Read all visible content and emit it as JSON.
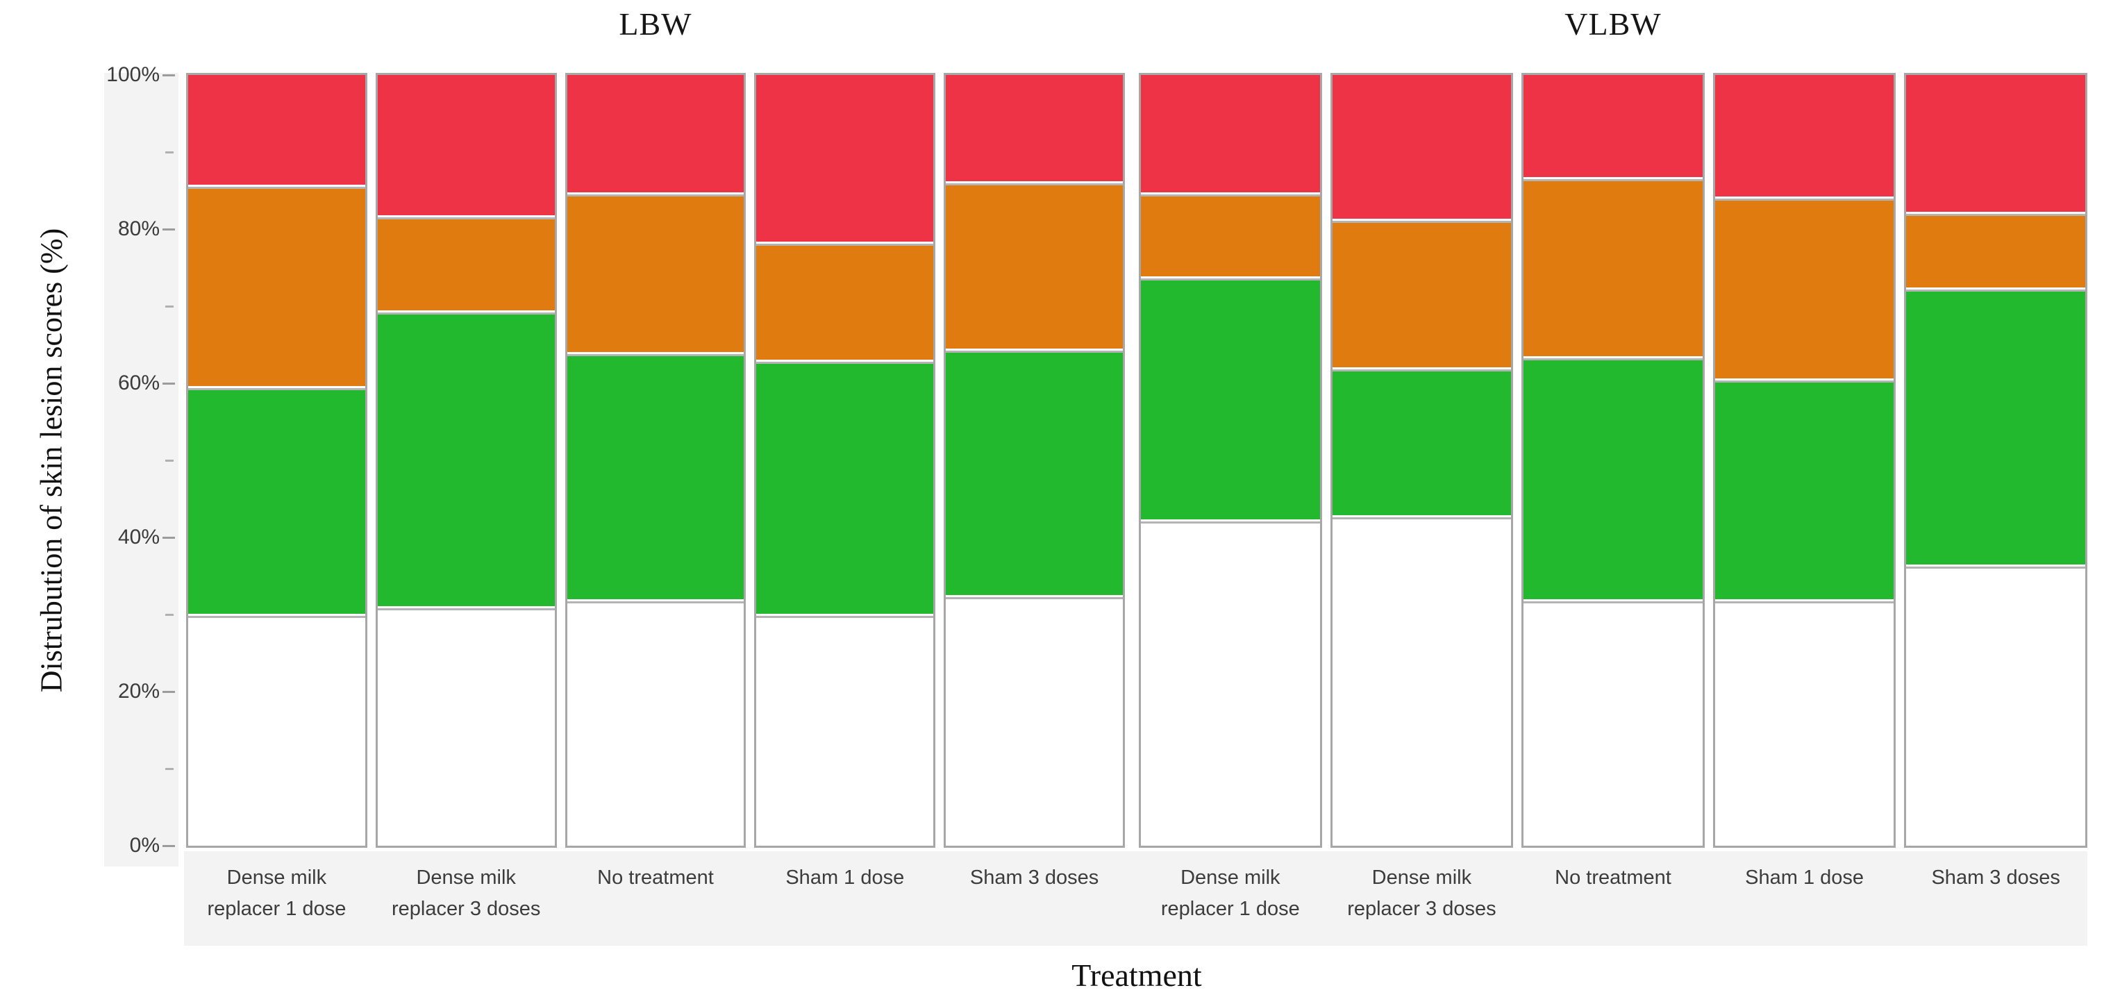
{
  "colors": {
    "red": "#ee3347",
    "orange": "#e07b10",
    "green": "#22b92e",
    "white": "#ffffff",
    "bar_border": "#a7a7a7",
    "divider_gray": "#b4b4b4",
    "strip_background": "#f3f3f3",
    "tick_mark": "#9c9c9c",
    "tick_text": "#3b3b3b",
    "title_text": "#111111"
  },
  "chart_data": {
    "type": "bar",
    "stacked": true,
    "normalized": "percent",
    "grid": false,
    "legend": "none",
    "xlabel": "Treatment",
    "ylabel": "Distrubution of skin lesion scores (%)",
    "ylim": [
      0,
      100
    ],
    "ytick_values": [
      0,
      20,
      40,
      60,
      80,
      100
    ],
    "ytick_labels": [
      "0%",
      "20%",
      "40%",
      "60%",
      "80%",
      "100%"
    ],
    "yminor_values": [
      10,
      30,
      50,
      70,
      90
    ],
    "panels": [
      {
        "title": "LBW",
        "categories": [
          "Dense milk replacer 1 dose",
          "Dense milk replacer 3 doses",
          "No treatment",
          "Sham 1 dose",
          "Sham 3 doses"
        ],
        "category_lines": [
          [
            "Dense milk",
            "replacer 1 dose"
          ],
          [
            "Dense milk",
            "replacer 3 doses"
          ],
          [
            "No treatment"
          ],
          [
            "Sham 1 dose"
          ],
          [
            "Sham 3 doses"
          ]
        ],
        "series": [
          {
            "name": "white",
            "color": "#ffffff",
            "values": [
              30.0,
              31.0,
              32.0,
              30.0,
              32.5
            ]
          },
          {
            "name": "green",
            "color": "#22b92e",
            "values": [
              29.5,
              38.5,
              32.0,
              33.0,
              32.0
            ]
          },
          {
            "name": "orange",
            "color": "#e07b10",
            "values": [
              26.0,
              12.0,
              20.5,
              15.0,
              21.5
            ]
          },
          {
            "name": "red",
            "color": "#ee3347",
            "values": [
              14.5,
              18.5,
              15.5,
              22.0,
              14.0
            ]
          }
        ]
      },
      {
        "title": "VLBW",
        "categories": [
          "Dense milk replacer 1 dose",
          "Dense milk replacer 3 doses",
          "No treatment",
          "Sham 1 dose",
          "Sham 3 doses"
        ],
        "category_lines": [
          [
            "Dense milk",
            "replacer 1 dose"
          ],
          [
            "Dense milk",
            "replacer 3 doses"
          ],
          [
            "No treatment"
          ],
          [
            "Sham 1 dose"
          ],
          [
            "Sham 3 doses"
          ]
        ],
        "series": [
          {
            "name": "white",
            "color": "#ffffff",
            "values": [
              42.5,
              43.0,
              32.0,
              32.0,
              36.5
            ]
          },
          {
            "name": "green",
            "color": "#22b92e",
            "values": [
              31.5,
              19.0,
              31.5,
              28.5,
              36.0
            ]
          },
          {
            "name": "orange",
            "color": "#e07b10",
            "values": [
              10.5,
              19.0,
              23.0,
              23.5,
              9.5
            ]
          },
          {
            "name": "red",
            "color": "#ee3347",
            "values": [
              15.5,
              19.0,
              13.5,
              16.0,
              18.0
            ]
          }
        ]
      }
    ]
  }
}
